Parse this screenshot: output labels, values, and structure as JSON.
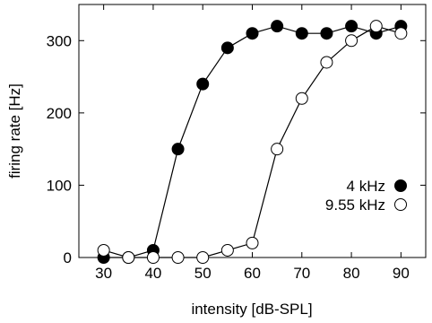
{
  "chart_data": {
    "type": "line",
    "title": "",
    "xlabel": "intensity [dB-SPL]",
    "ylabel": "firing rate [Hz]",
    "xlim": [
      25,
      95
    ],
    "ylim": [
      0,
      350
    ],
    "xticks": [
      30,
      40,
      50,
      60,
      70,
      80,
      90
    ],
    "yticks": [
      0,
      100,
      200,
      300
    ],
    "x": [
      30,
      35,
      40,
      45,
      50,
      55,
      60,
      65,
      70,
      75,
      80,
      85,
      90
    ],
    "series": [
      {
        "name": "4 kHz",
        "marker": "filled-circle",
        "color": "#000000",
        "values": [
          0,
          0,
          10,
          150,
          240,
          290,
          310,
          320,
          310,
          310,
          320,
          310,
          320
        ]
      },
      {
        "name": "9.55 kHz",
        "marker": "open-circle",
        "color": "#000000",
        "values": [
          10,
          0,
          0,
          0,
          0,
          10,
          20,
          150,
          220,
          270,
          300,
          320,
          310
        ]
      }
    ],
    "legend_position": "lower-right",
    "grid": false
  }
}
